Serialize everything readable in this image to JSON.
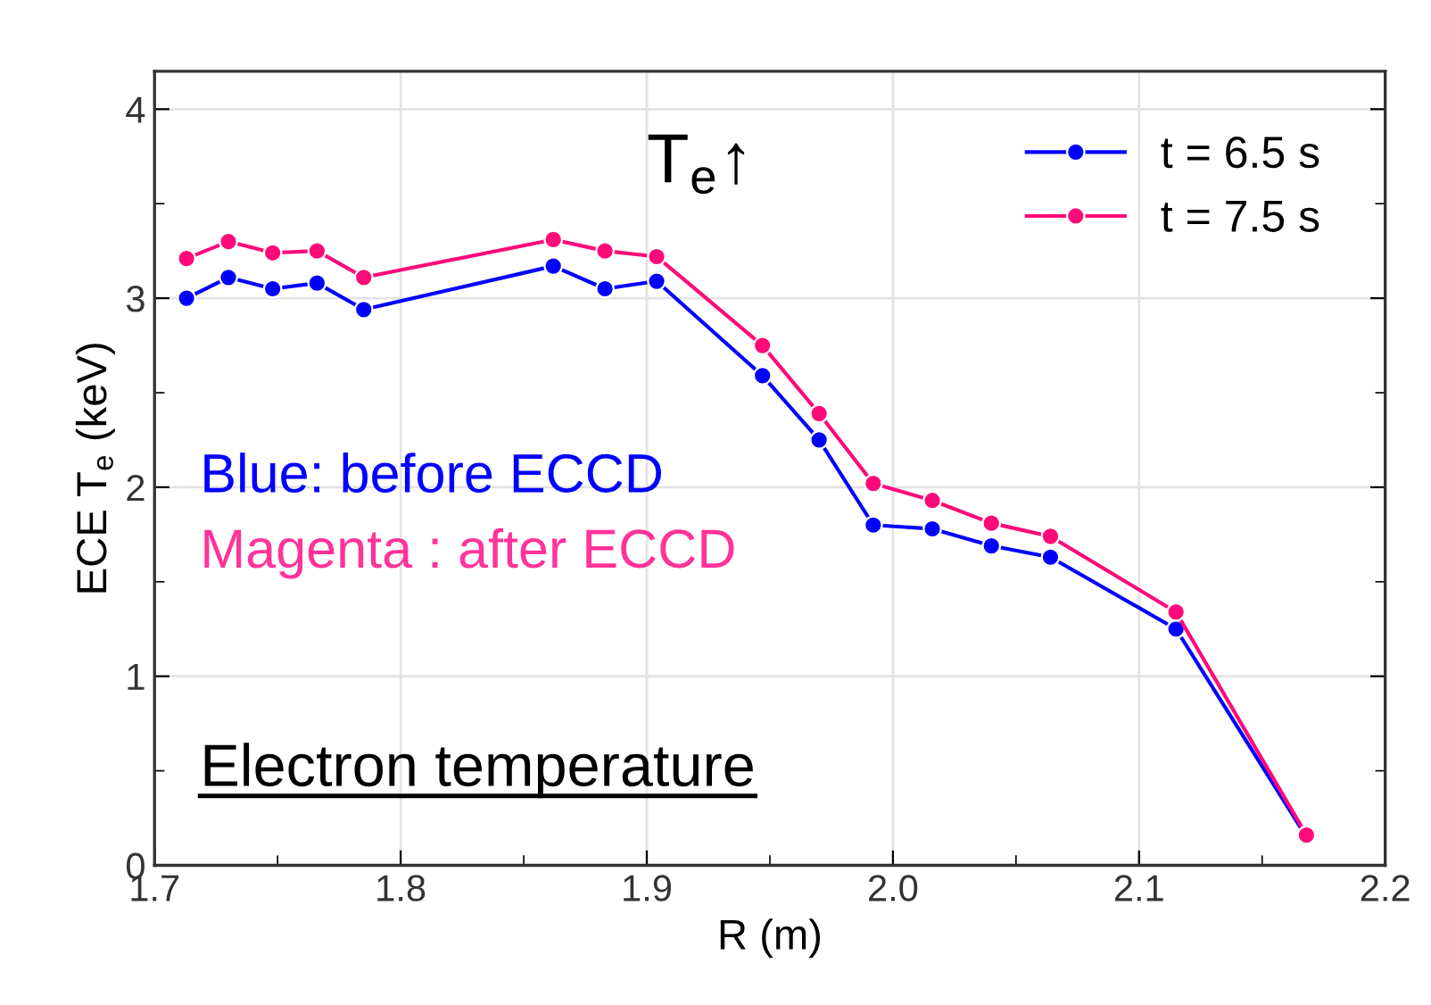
{
  "chart_data": {
    "type": "line",
    "xlabel": "R (m)",
    "ylabel": "ECE T$_{e}$ (keV)",
    "xlim": [
      1.7,
      2.2
    ],
    "xticks": [
      1.7,
      1.8,
      1.9,
      {
        "value": 2.0,
        "label": "2.0"
      },
      2.1,
      2.2
    ],
    "ylim": [
      0,
      4.2
    ],
    "yticks": [
      0,
      1,
      2,
      3,
      4
    ],
    "grid": true,
    "legend": "top right",
    "marker": "circle",
    "line_style": "solid",
    "series": [
      {
        "name": "t = 6.5 s",
        "color": "#0000ff",
        "x": [
          1.713,
          1.73,
          1.748,
          1.766,
          1.785,
          1.862,
          1.883,
          1.904,
          1.947,
          1.97,
          1.992,
          2.016,
          2.04,
          2.064,
          2.115,
          2.168
        ],
        "values": [
          3.0,
          3.11,
          3.05,
          3.08,
          2.94,
          3.17,
          3.05,
          3.09,
          2.59,
          2.25,
          1.8,
          1.78,
          1.69,
          1.63,
          1.25,
          0.15
        ]
      },
      {
        "name": "t = 7.5 s",
        "color": "#ff0a78",
        "x": [
          1.713,
          1.73,
          1.748,
          1.766,
          1.785,
          1.862,
          1.883,
          1.904,
          1.947,
          1.97,
          1.992,
          2.016,
          2.04,
          2.064,
          2.115,
          2.168
        ],
        "values": [
          3.21,
          3.3,
          3.24,
          3.25,
          3.11,
          3.31,
          3.25,
          3.22,
          2.75,
          2.39,
          2.02,
          1.93,
          1.81,
          1.74,
          1.34,
          0.16
        ]
      }
    ],
    "annotations": [
      "T$_{e}$↑",
      "Blue: before ECCD",
      "Magenta : after ECCD",
      "Electron temperature"
    ]
  }
}
